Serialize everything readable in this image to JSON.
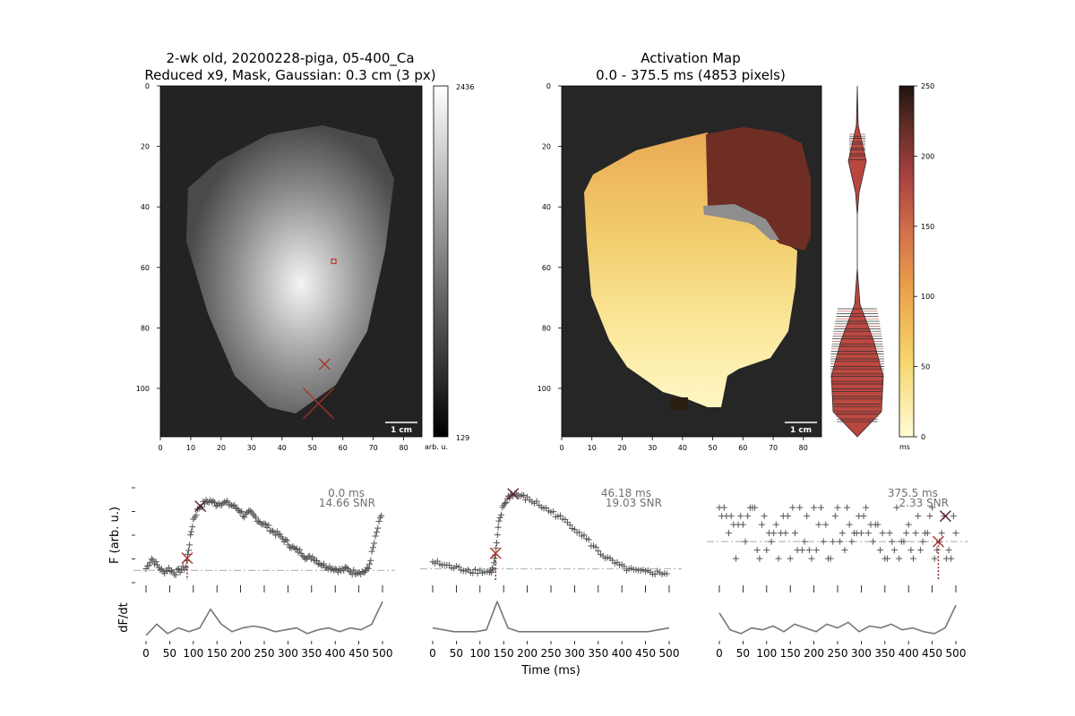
{
  "figure": {
    "map1_title_line1": "2-wk old, 20200228-piga, 05-400_Ca",
    "map1_title_line2": "Reduced x9, Mask, Gaussian: 0.3 cm (3 px)",
    "map2_title_line1": "Activation Map",
    "map2_title_line2": "0.0 - 375.5 ms (4853 pixels)",
    "scale_bar_label": "1 cm",
    "colorbar1_unit": "arb. u.",
    "colorbar2_unit": "ms",
    "trace_ylabel": "F (arb. u.)",
    "deriv_ylabel": "dF/dt",
    "time_xlabel": "Time (ms)"
  },
  "chart_data": [
    {
      "type": "heatmap",
      "name": "fluorescence-map",
      "title": "2-wk old, 20200228-piga, 05-400_Ca\nReduced x9, Mask, Gaussian: 0.3 cm (3 px)",
      "x_ticks": [
        0,
        10,
        20,
        30,
        40,
        50,
        60,
        70,
        80
      ],
      "y_ticks": [
        0,
        20,
        40,
        60,
        80,
        100
      ],
      "xlim": [
        0,
        86
      ],
      "ylim": [
        116,
        0
      ],
      "colorbar": {
        "min": 129,
        "max": 2436,
        "min_label": "129",
        "max_label": "2436",
        "unit": "arb. u.",
        "cmap": "gray"
      },
      "markers": [
        {
          "kind": "square",
          "x": 57,
          "y": 58,
          "color": "#c0392b"
        },
        {
          "kind": "x-small",
          "x": 54,
          "y": 92,
          "color": "#a93226"
        },
        {
          "kind": "x-large",
          "x": 52,
          "y": 105,
          "color": "#a93226"
        }
      ]
    },
    {
      "type": "heatmap",
      "name": "activation-map",
      "title": "Activation Map\n0.0 - 375.5 ms (4853 pixels)",
      "x_ticks": [
        0,
        10,
        20,
        30,
        40,
        50,
        60,
        70,
        80
      ],
      "y_ticks": [
        0,
        20,
        40,
        60,
        80,
        100
      ],
      "xlim": [
        0,
        86
      ],
      "ylim": [
        116,
        0
      ],
      "colorbar": {
        "min": 0,
        "max": 250,
        "ticks": [
          0,
          50,
          100,
          150,
          200,
          250
        ],
        "unit": "ms",
        "cmap": "yellow-orange-brown"
      }
    },
    {
      "type": "violin",
      "name": "activation-distribution",
      "ylim": [
        0,
        250
      ],
      "modes": [
        {
          "center": 230,
          "width": "narrow"
        },
        {
          "center": 40,
          "width": "wide"
        }
      ]
    },
    {
      "type": "scatter",
      "name": "trace-1",
      "xlabel": "",
      "ylabel": "F (arb. u.)",
      "xlim": [
        0,
        500
      ],
      "x_ticks": [
        0,
        50,
        100,
        150,
        200,
        250,
        300,
        350,
        400,
        450,
        500
      ],
      "annotation_time": "0.0 ms",
      "annotation_snr": "14.66 SNR",
      "activation_time": 87,
      "peak_time": 115,
      "points_x": [
        0,
        12,
        24,
        36,
        48,
        60,
        72,
        84,
        92,
        100,
        112,
        124,
        136,
        148,
        160,
        172,
        184,
        196,
        208,
        220,
        232,
        244,
        256,
        268,
        280,
        292,
        304,
        316,
        328,
        340,
        352,
        364,
        376,
        388,
        400,
        412,
        424,
        436,
        448,
        460,
        470,
        480,
        490,
        500
      ],
      "points_y": [
        0.1,
        0.22,
        0.14,
        0.06,
        0.1,
        0.05,
        0.08,
        0.12,
        0.4,
        0.68,
        0.82,
        0.88,
        0.9,
        0.86,
        0.88,
        0.87,
        0.84,
        0.8,
        0.72,
        0.76,
        0.7,
        0.64,
        0.6,
        0.54,
        0.5,
        0.44,
        0.38,
        0.32,
        0.3,
        0.22,
        0.24,
        0.18,
        0.14,
        0.12,
        0.1,
        0.08,
        0.1,
        0.06,
        0.07,
        0.06,
        0.1,
        0.34,
        0.58,
        0.78
      ],
      "baseline": 0.08,
      "derivative_y": [
        0.0,
        0.3,
        0.05,
        0.2,
        0.1,
        0.2,
        0.7,
        0.3,
        0.1,
        0.2,
        0.25,
        0.2,
        0.1,
        0.15,
        0.2,
        0.05,
        0.15,
        0.2,
        0.1,
        0.2,
        0.15,
        0.3,
        0.9
      ]
    },
    {
      "type": "scatter",
      "name": "trace-2",
      "xlabel": "Time (ms)",
      "ylabel": "",
      "xlim": [
        0,
        500
      ],
      "x_ticks": [
        0,
        50,
        100,
        150,
        200,
        250,
        300,
        350,
        400,
        450,
        500
      ],
      "annotation_time": "46.18 ms",
      "annotation_snr": "19.03 SNR",
      "activation_time": 133,
      "peak_time": 170,
      "points_x": [
        0,
        20,
        40,
        60,
        80,
        100,
        120,
        128,
        134,
        140,
        150,
        160,
        170,
        185,
        200,
        220,
        240,
        260,
        280,
        300,
        320,
        340,
        360,
        380,
        400,
        420,
        440,
        460,
        480,
        500
      ],
      "points_y": [
        0.18,
        0.15,
        0.12,
        0.1,
        0.08,
        0.07,
        0.06,
        0.1,
        0.32,
        0.64,
        0.85,
        0.94,
        0.98,
        0.96,
        0.92,
        0.87,
        0.8,
        0.74,
        0.66,
        0.58,
        0.48,
        0.36,
        0.26,
        0.18,
        0.12,
        0.08,
        0.06,
        0.06,
        0.05,
        0.05
      ],
      "baseline": 0.1,
      "derivative_y": [
        0.2,
        0.15,
        0.1,
        0.1,
        0.1,
        0.15,
        0.9,
        0.2,
        0.1,
        0.1,
        0.1,
        0.1,
        0.1,
        0.1,
        0.1,
        0.1,
        0.1,
        0.1,
        0.1,
        0.1,
        0.1,
        0.15,
        0.2
      ]
    },
    {
      "type": "scatter",
      "name": "trace-3",
      "xlabel": "",
      "ylabel": "",
      "xlim": [
        0,
        500
      ],
      "x_ticks": [
        0,
        50,
        100,
        150,
        200,
        250,
        300,
        350,
        400,
        450,
        500
      ],
      "annotation_time": "375.5 ms",
      "annotation_snr": "2.33 SNR",
      "activation_time": 463,
      "peak_time": 478,
      "baseline": 0.42,
      "derivative_y": [
        0.6,
        0.15,
        0.05,
        0.2,
        0.15,
        0.25,
        0.1,
        0.3,
        0.2,
        0.1,
        0.3,
        0.2,
        0.35,
        0.1,
        0.25,
        0.2,
        0.3,
        0.15,
        0.2,
        0.1,
        0.05,
        0.2,
        0.8
      ]
    }
  ]
}
